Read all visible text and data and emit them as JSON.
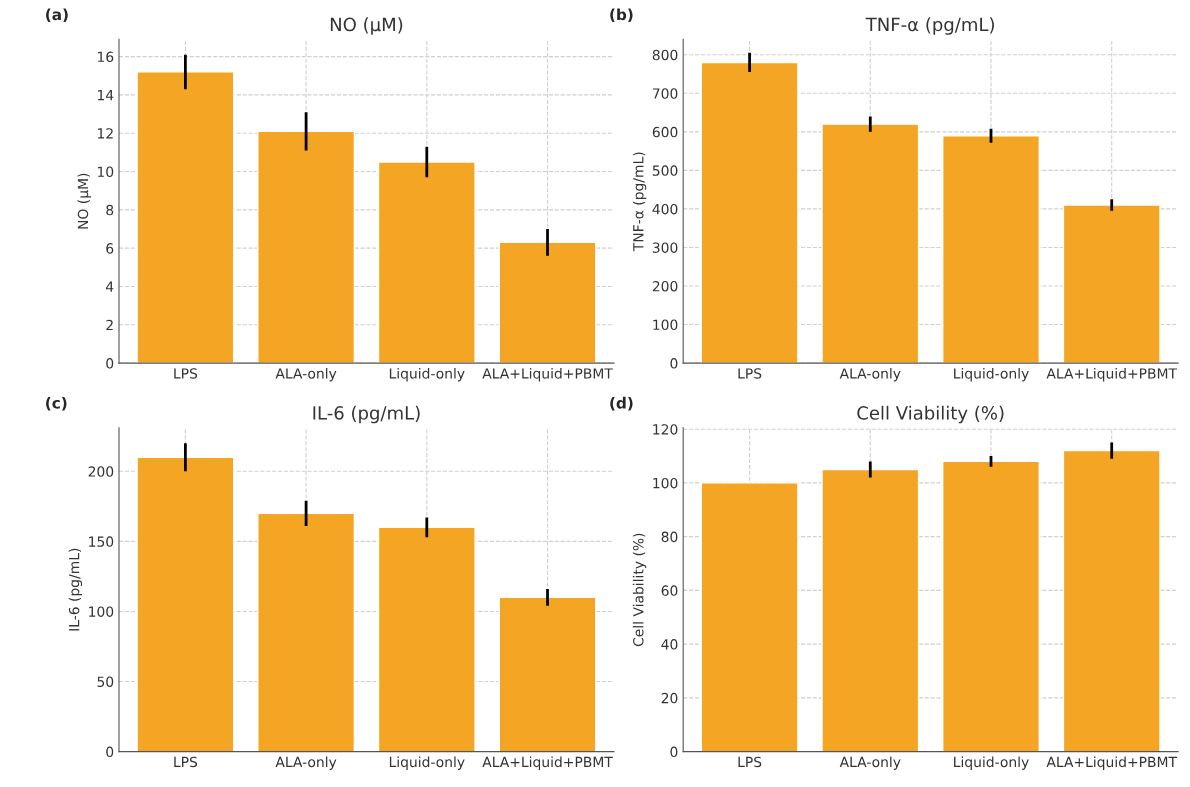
{
  "chart_data": [
    {
      "type": "bar",
      "title": "NO (μM)",
      "ylabel": "NO (μM)",
      "annotations": [
        "(a)"
      ],
      "categories": [
        "LPS",
        "ALA-only",
        "Liquid-only",
        "ALA+Liquid+PBMT"
      ],
      "values": [
        15.2,
        12.1,
        10.5,
        6.3
      ],
      "errors": [
        0.9,
        1.0,
        0.8,
        0.7
      ],
      "color": "#f4a523",
      "ylim": [
        0,
        16.9
      ],
      "yticks": [
        0,
        2,
        4,
        6,
        8,
        10,
        12,
        14,
        16
      ],
      "grid": true
    },
    {
      "type": "bar",
      "title": "TNF-α (pg/mL)",
      "ylabel": "TNF-α (pg/mL)",
      "annotations": [
        "(b)"
      ],
      "categories": [
        "LPS",
        "ALA-only",
        "Liquid-only",
        "ALA+Liquid+PBMT"
      ],
      "values": [
        780,
        620,
        590,
        410
      ],
      "errors": [
        25,
        20,
        18,
        15
      ],
      "color": "#f4a523",
      "ylim": [
        0,
        840
      ],
      "yticks": [
        0,
        100,
        200,
        300,
        400,
        500,
        600,
        700,
        800
      ],
      "grid": true
    },
    {
      "type": "bar",
      "title": "IL-6 (pg/mL)",
      "ylabel": "IL-6 (pg/mL)",
      "annotations": [
        "(c)"
      ],
      "categories": [
        "LPS",
        "ALA-only",
        "Liquid-only",
        "ALA+Liquid+PBMT"
      ],
      "values": [
        210,
        170,
        160,
        110
      ],
      "errors": [
        10,
        9,
        7,
        6
      ],
      "color": "#f4a523",
      "ylim": [
        0,
        231
      ],
      "yticks": [
        0,
        50,
        100,
        150,
        200
      ],
      "grid": true
    },
    {
      "type": "bar",
      "title": "Cell Viability (%)",
      "ylabel": "Cell Viability (%)",
      "annotations": [
        "(d)"
      ],
      "categories": [
        "LPS",
        "ALA-only",
        "Liquid-only",
        "ALA+Liquid+PBMT"
      ],
      "values": [
        100,
        105,
        108,
        112
      ],
      "errors": [
        null,
        3,
        2,
        3
      ],
      "color": "#f4a523",
      "ylim": [
        0,
        120.5
      ],
      "yticks": [
        0,
        20,
        40,
        60,
        80,
        100,
        120
      ],
      "grid": true
    }
  ]
}
